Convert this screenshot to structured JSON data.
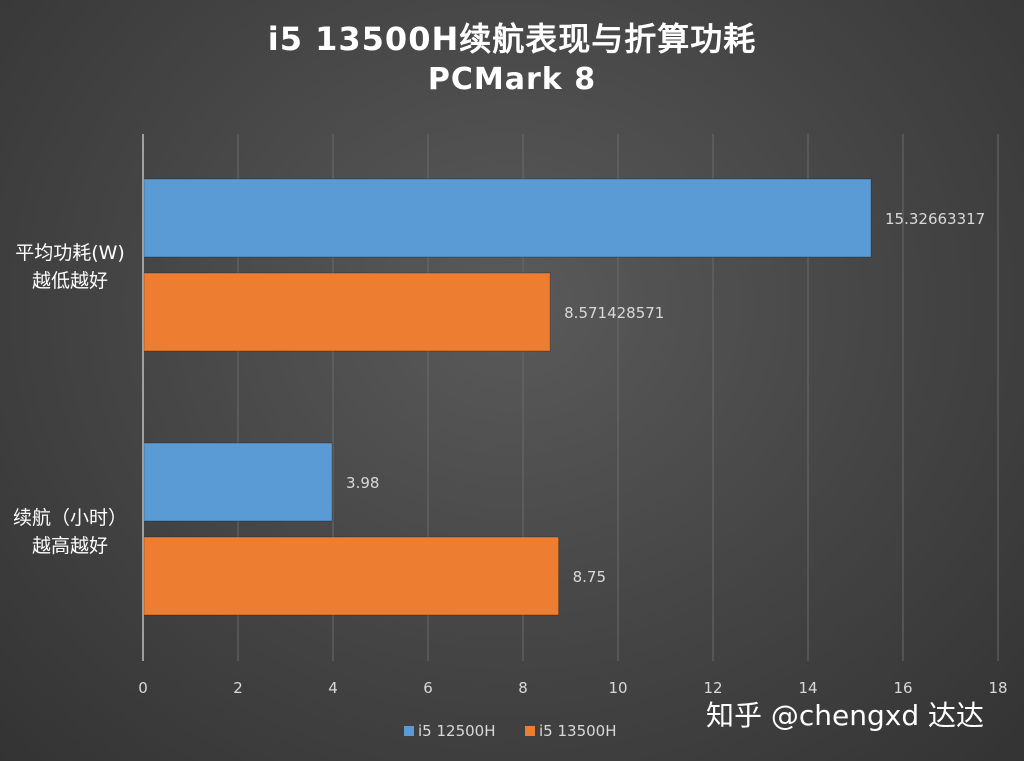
{
  "chart_data": {
    "type": "bar",
    "orientation": "horizontal",
    "title": "i5 13500H续航表现与折算功耗",
    "subtitle": "PCMark 8",
    "categories": [
      [
        "平均功耗(W)",
        "越低越好"
      ],
      [
        "续航（小时）",
        "越高越好"
      ]
    ],
    "series": [
      {
        "name": "i5 12500H",
        "color": "#5b9bd5",
        "values": [
          15.32663317,
          3.98
        ],
        "labels": [
          "15.32663317",
          "3.98"
        ]
      },
      {
        "name": "i5 13500H",
        "color": "#ed7d31",
        "values": [
          8.571428571,
          8.75
        ],
        "labels": [
          "8.571428571",
          "8.75"
        ]
      }
    ],
    "xlim": [
      0,
      18
    ],
    "xticks": [
      0,
      2,
      4,
      6,
      8,
      10,
      12,
      14,
      16,
      18
    ],
    "grid": true,
    "legend": "bottom"
  },
  "watermark": "知乎 @chengxd 达达"
}
